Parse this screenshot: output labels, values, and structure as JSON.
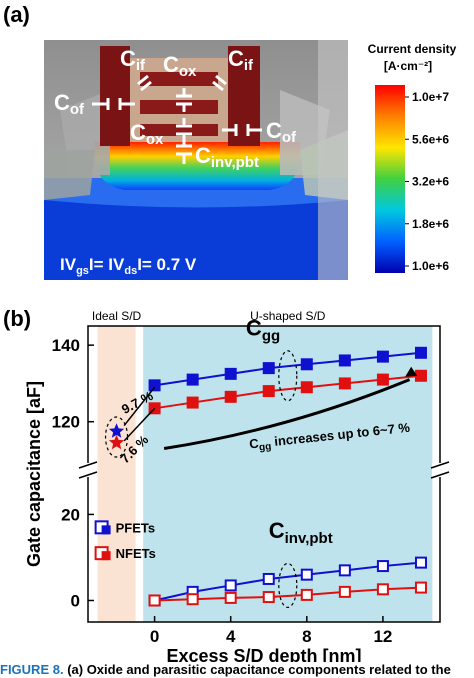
{
  "panel_a": {
    "label": "(a)",
    "capacitors": {
      "cif_left": "C",
      "cif_left_sub": "if",
      "cif_right": "C",
      "cif_right_sub": "if",
      "cox_top": "C",
      "cox_top_sub": "ox",
      "cox_mid": "C",
      "cox_mid_sub": "ox",
      "cof_left": "C",
      "cof_left_sub": "of",
      "cof_right": "C",
      "cof_right_sub": "of",
      "cinv": "C",
      "cinv_sub": "inv,pbt"
    },
    "bias_parts": [
      "IV",
      "gs",
      "I= IV",
      "ds",
      "I= 0.7 V"
    ],
    "colorbar": {
      "title_line1": "Current density",
      "title_line2": "[A·cm⁻²]",
      "ticks": [
        "1.0e+7",
        "5.6e+6",
        "3.2e+6",
        "1.8e+6",
        "1.0e+6"
      ],
      "colors": [
        "#ff0000",
        "#ff8000",
        "#ffe600",
        "#40d040",
        "#00c8e0",
        "#0060ff",
        "#0000b0"
      ]
    }
  },
  "panel_b": {
    "label": "(b)",
    "region_labels": {
      "ideal": "Ideal S/D",
      "ushaped": "U-shaped S/D"
    },
    "legend": {
      "pfet": "PFETs",
      "nfet": "NFETs"
    },
    "annotations": {
      "cgg": "C",
      "cgg_sub": "gg",
      "cinv": "C",
      "cinv_sub": "inv,pbt",
      "pct_top": "9.7 %",
      "pct_bottom": "7.6 %",
      "arrow_text_parts": [
        "C",
        "gg",
        " increases up to 6~7 %"
      ]
    },
    "colors": {
      "pfet": "#1010d0",
      "nfet": "#e01010",
      "ushaped_bg": "#bfe3ec",
      "ideal_bg": "#fbe3d3"
    }
  },
  "chart_data": {
    "type": "line",
    "xlabel": "Excess S/D depth [nm]",
    "ylabel": "Gate capacitance [aF]",
    "x_ticks": [
      "0",
      "4",
      "8",
      "12"
    ],
    "y_ticks_upper": [
      "120",
      "140"
    ],
    "y_ticks_lower": [
      "0",
      "20"
    ],
    "xlim": [
      -3.5,
      15
    ],
    "ylim_upper": [
      110,
      145
    ],
    "ylim_lower": [
      -5,
      28
    ],
    "axis_break": true,
    "series": [
      {
        "name": "PFETs",
        "group": "Cgg",
        "x": [
          0,
          2,
          4,
          6,
          8,
          10,
          12,
          14
        ],
        "values": [
          129.5,
          131,
          132.5,
          134,
          135,
          136,
          137,
          138
        ]
      },
      {
        "name": "NFETs",
        "group": "Cgg",
        "x": [
          0,
          2,
          4,
          6,
          8,
          10,
          12,
          14
        ],
        "values": [
          123.5,
          125,
          126.5,
          128,
          129,
          130,
          131,
          132
        ]
      },
      {
        "name": "PFETs",
        "group": "Cinv,pbt",
        "x": [
          0,
          2,
          4,
          6,
          8,
          10,
          12,
          14
        ],
        "values": [
          0,
          2,
          3.5,
          5,
          6,
          7,
          8,
          8.8
        ]
      },
      {
        "name": "NFETs",
        "group": "Cinv,pbt",
        "x": [
          0,
          2,
          4,
          6,
          8,
          10,
          12,
          14
        ],
        "values": [
          0,
          0.3,
          0.6,
          0.8,
          1.3,
          2,
          2.6,
          3
        ]
      }
    ],
    "ideal_points": [
      {
        "name": "PFETs",
        "x": -2,
        "value": 117.5
      },
      {
        "name": "NFETs",
        "x": -2,
        "value": 114.5
      }
    ]
  },
  "caption": {
    "lead": "FIGURE 8.",
    "text": " (a) Oxide and parasitic capacitance components related to the"
  }
}
